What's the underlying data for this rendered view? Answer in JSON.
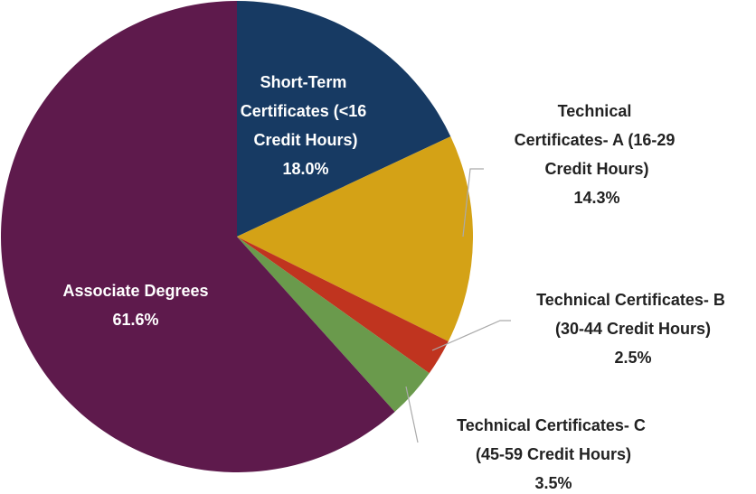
{
  "chart_data": {
    "type": "pie",
    "categories": [
      "Short-Term Certificates (<16 Credit Hours)",
      "Technical Certificates- A (16-29 Credit Hours)",
      "Technical Certificates- B (30-44 Credit Hours)",
      "Technical Certificates- C (45-59 Credit Hours)",
      "Associate Degrees"
    ],
    "values": [
      18.0,
      14.3,
      2.5,
      3.5,
      61.6
    ],
    "value_labels": [
      "18.0%",
      "14.3%",
      "2.5%",
      "3.5%",
      "61.6%"
    ],
    "colors": [
      "#173a63",
      "#d4a216",
      "#c0341f",
      "#6a9a4c",
      "#5e1a4c"
    ]
  }
}
